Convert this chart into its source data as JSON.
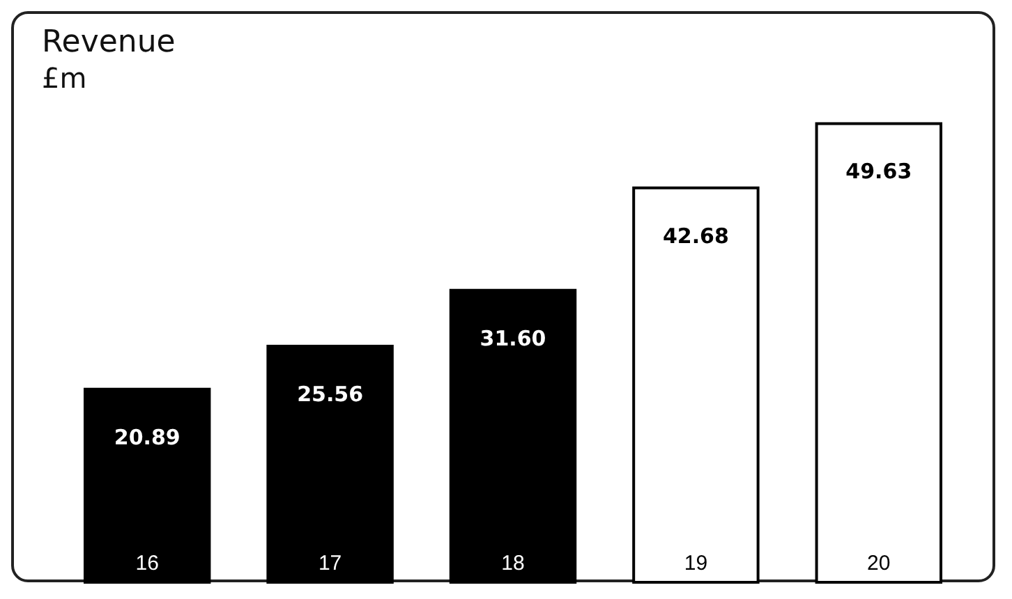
{
  "chart_data": {
    "type": "bar",
    "title": "Revenue",
    "subtitle": "£m",
    "categories": [
      "16",
      "17",
      "18",
      "19",
      "20"
    ],
    "values": [
      20.89,
      25.56,
      31.6,
      42.68,
      49.63
    ],
    "value_labels": [
      "20.89",
      "25.56",
      "31.60",
      "42.68",
      "49.63"
    ],
    "colors": [
      "#000000",
      "#000000",
      "#000000",
      "#ffffff",
      "#ffffff"
    ],
    "grid": false,
    "legend": false
  }
}
